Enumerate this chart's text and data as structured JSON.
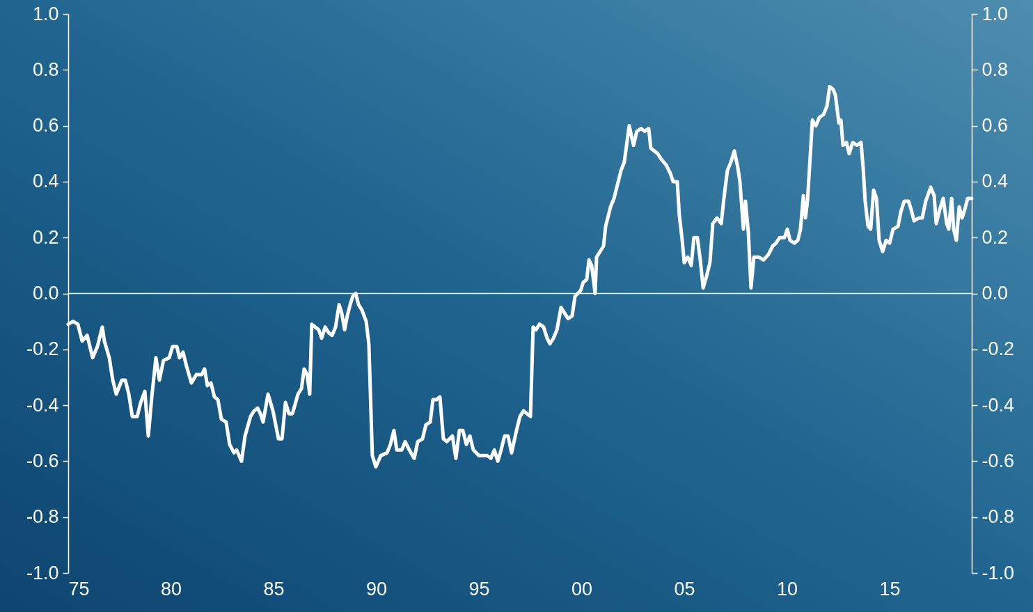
{
  "chart_data": {
    "type": "line",
    "grid": false,
    "marker": "none",
    "line_style": "solid",
    "xlim": [
      1975,
      2019
    ],
    "xticks": [
      {
        "value": 1975,
        "label": "75"
      },
      {
        "value": 1980,
        "label": "80"
      },
      {
        "value": 1985,
        "label": "85"
      },
      {
        "value": 1990,
        "label": "90"
      },
      {
        "value": 1995,
        "label": "95"
      },
      {
        "value": 2000,
        "label": "00"
      },
      {
        "value": 2005,
        "label": "05"
      },
      {
        "value": 2010,
        "label": "10"
      },
      {
        "value": 2015,
        "label": "15"
      }
    ],
    "ylim": [
      -1,
      1
    ],
    "yticks": [
      {
        "value": -1,
        "label": "-1.0"
      },
      -0.8,
      -0.6,
      -0.4,
      -0.2,
      {
        "value": 0,
        "label": "0.0"
      },
      0.2,
      0.4,
      0.6,
      0.8,
      {
        "value": 1,
        "label": "1.0"
      }
    ],
    "y2lim": [
      -1,
      1
    ],
    "y2ticks": [
      {
        "value": -1,
        "label": "-1.0"
      },
      -0.8,
      -0.6,
      -0.4,
      -0.2,
      {
        "value": 0,
        "label": "0.0"
      },
      0.2,
      0.4,
      0.6,
      0.8,
      {
        "value": 1,
        "label": "1.0"
      }
    ],
    "ref_lines": [
      {
        "axis": "y",
        "value": 0,
        "color": "#ffffff"
      }
    ],
    "series": [
      {
        "color": "#ffffff",
        "x": [
          1975.0,
          1975.24,
          1975.47,
          1975.68,
          1975.92,
          1976.19,
          1976.42,
          1976.66,
          1976.76,
          1977.0,
          1977.17,
          1977.34,
          1977.61,
          1977.78,
          1977.95,
          1978.12,
          1978.36,
          1978.53,
          1978.73,
          1978.9,
          1979.07,
          1979.27,
          1979.44,
          1979.64,
          1979.92,
          1980.08,
          1980.29,
          1980.42,
          1980.59,
          1980.76,
          1981.0,
          1981.24,
          1981.51,
          1981.64,
          1981.78,
          1981.95,
          1982.12,
          1982.29,
          1982.46,
          1982.69,
          1982.86,
          1983.07,
          1983.2,
          1983.44,
          1983.61,
          1983.88,
          1984.05,
          1984.22,
          1984.36,
          1984.49,
          1984.73,
          1984.97,
          1985.24,
          1985.41,
          1985.58,
          1985.75,
          1985.92,
          1986.19,
          1986.36,
          1986.49,
          1986.63,
          1986.76,
          1986.86,
          1987.03,
          1987.2,
          1987.34,
          1987.51,
          1987.68,
          1987.85,
          1988.02,
          1988.19,
          1988.32,
          1988.46,
          1988.59,
          1988.73,
          1988.86,
          1989.0,
          1989.14,
          1989.31,
          1989.51,
          1989.64,
          1989.81,
          1989.98,
          1990.22,
          1990.53,
          1990.69,
          1990.86,
          1991.0,
          1991.24,
          1991.41,
          1991.61,
          1991.85,
          1992.02,
          1992.25,
          1992.42,
          1992.63,
          1992.76,
          1992.93,
          1993.1,
          1993.27,
          1993.44,
          1993.71,
          1993.88,
          1994.05,
          1994.22,
          1994.39,
          1994.56,
          1994.73,
          1995.0,
          1995.2,
          1995.41,
          1995.58,
          1995.75,
          1995.92,
          1996.08,
          1996.25,
          1996.42,
          1996.59,
          1996.83,
          1997.0,
          1997.17,
          1997.34,
          1997.51,
          1997.64,
          1997.78,
          1997.95,
          1998.15,
          1998.32,
          1998.46,
          1998.63,
          1998.8,
          1999.0,
          1999.17,
          1999.34,
          1999.54,
          1999.68,
          1999.81,
          1999.95,
          2000.08,
          2000.25,
          2000.36,
          2000.49,
          2000.66,
          2000.73,
          2000.9,
          2001.07,
          2001.17,
          2001.41,
          2001.58,
          2001.75,
          2001.92,
          2002.08,
          2002.19,
          2002.32,
          2002.53,
          2002.69,
          2002.9,
          2003.07,
          2003.27,
          2003.37,
          2003.54,
          2003.71,
          2003.88,
          2004.12,
          2004.32,
          2004.46,
          2004.66,
          2004.76,
          2004.9,
          2005.0,
          2005.17,
          2005.34,
          2005.47,
          2005.64,
          2005.78,
          2005.92,
          2006.08,
          2006.25,
          2006.39,
          2006.59,
          2006.8,
          2006.93,
          2007.1,
          2007.27,
          2007.44,
          2007.61,
          2007.71,
          2007.88,
          2007.98,
          2008.12,
          2008.25,
          2008.39,
          2008.63,
          2008.86,
          2009.1,
          2009.31,
          2009.47,
          2009.64,
          2009.88,
          2010.02,
          2010.15,
          2010.36,
          2010.53,
          2010.66,
          2010.8,
          2010.9,
          2011.0,
          2011.1,
          2011.24,
          2011.41,
          2011.58,
          2011.78,
          2011.95,
          2012.08,
          2012.25,
          2012.36,
          2012.53,
          2012.63,
          2012.73,
          2012.9,
          2013.03,
          2013.2,
          2013.41,
          2013.61,
          2013.71,
          2013.81,
          2013.95,
          2014.08,
          2014.22,
          2014.36,
          2014.49,
          2014.66,
          2014.83,
          2015.0,
          2015.17,
          2015.41,
          2015.54,
          2015.71,
          2015.92,
          2016.05,
          2016.19,
          2016.42,
          2016.59,
          2016.76,
          2017.0,
          2017.17,
          2017.27,
          2017.44,
          2017.61,
          2017.78,
          2017.88,
          2018.02,
          2018.12,
          2018.25,
          2018.39,
          2018.53,
          2018.66,
          2018.8,
          2019.0
        ],
        "values": [
          -0.11,
          -0.1,
          -0.11,
          -0.17,
          -0.15,
          -0.23,
          -0.19,
          -0.12,
          -0.17,
          -0.23,
          -0.31,
          -0.36,
          -0.31,
          -0.31,
          -0.36,
          -0.44,
          -0.44,
          -0.39,
          -0.35,
          -0.51,
          -0.37,
          -0.23,
          -0.31,
          -0.24,
          -0.23,
          -0.19,
          -0.19,
          -0.23,
          -0.21,
          -0.26,
          -0.32,
          -0.29,
          -0.29,
          -0.27,
          -0.33,
          -0.32,
          -0.37,
          -0.38,
          -0.45,
          -0.46,
          -0.54,
          -0.57,
          -0.56,
          -0.6,
          -0.51,
          -0.44,
          -0.42,
          -0.41,
          -0.43,
          -0.46,
          -0.36,
          -0.42,
          -0.52,
          -0.52,
          -0.39,
          -0.43,
          -0.43,
          -0.36,
          -0.34,
          -0.27,
          -0.29,
          -0.36,
          -0.11,
          -0.12,
          -0.13,
          -0.16,
          -0.12,
          -0.14,
          -0.15,
          -0.12,
          -0.04,
          -0.07,
          -0.13,
          -0.08,
          -0.04,
          -0.01,
          0.0,
          -0.04,
          -0.06,
          -0.1,
          -0.18,
          -0.58,
          -0.62,
          -0.58,
          -0.57,
          -0.54,
          -0.49,
          -0.56,
          -0.56,
          -0.53,
          -0.56,
          -0.59,
          -0.53,
          -0.52,
          -0.47,
          -0.46,
          -0.38,
          -0.38,
          -0.37,
          -0.52,
          -0.53,
          -0.51,
          -0.59,
          -0.49,
          -0.49,
          -0.54,
          -0.51,
          -0.56,
          -0.58,
          -0.58,
          -0.58,
          -0.59,
          -0.56,
          -0.6,
          -0.56,
          -0.51,
          -0.51,
          -0.57,
          -0.49,
          -0.44,
          -0.42,
          -0.43,
          -0.44,
          -0.12,
          -0.13,
          -0.11,
          -0.12,
          -0.16,
          -0.18,
          -0.16,
          -0.13,
          -0.05,
          -0.07,
          -0.09,
          -0.08,
          -0.01,
          0.0,
          0.01,
          0.04,
          0.05,
          0.12,
          0.1,
          0.0,
          0.13,
          0.15,
          0.17,
          0.24,
          0.31,
          0.34,
          0.39,
          0.44,
          0.47,
          0.53,
          0.6,
          0.53,
          0.58,
          0.59,
          0.58,
          0.59,
          0.52,
          0.51,
          0.5,
          0.48,
          0.46,
          0.43,
          0.4,
          0.4,
          0.28,
          0.19,
          0.11,
          0.13,
          0.1,
          0.2,
          0.2,
          0.12,
          0.02,
          0.06,
          0.11,
          0.25,
          0.27,
          0.25,
          0.34,
          0.44,
          0.47,
          0.51,
          0.45,
          0.4,
          0.23,
          0.33,
          0.22,
          0.02,
          0.13,
          0.13,
          0.12,
          0.14,
          0.17,
          0.18,
          0.2,
          0.2,
          0.23,
          0.19,
          0.18,
          0.19,
          0.23,
          0.35,
          0.27,
          0.33,
          0.45,
          0.62,
          0.6,
          0.63,
          0.64,
          0.67,
          0.74,
          0.73,
          0.71,
          0.61,
          0.62,
          0.53,
          0.54,
          0.5,
          0.54,
          0.53,
          0.54,
          0.45,
          0.33,
          0.24,
          0.23,
          0.37,
          0.34,
          0.19,
          0.15,
          0.19,
          0.18,
          0.23,
          0.24,
          0.29,
          0.33,
          0.33,
          0.3,
          0.26,
          0.27,
          0.27,
          0.33,
          0.38,
          0.35,
          0.25,
          0.3,
          0.34,
          0.25,
          0.23,
          0.34,
          0.23,
          0.19,
          0.31,
          0.27,
          0.3,
          0.34,
          0.34
        ]
      }
    ]
  }
}
